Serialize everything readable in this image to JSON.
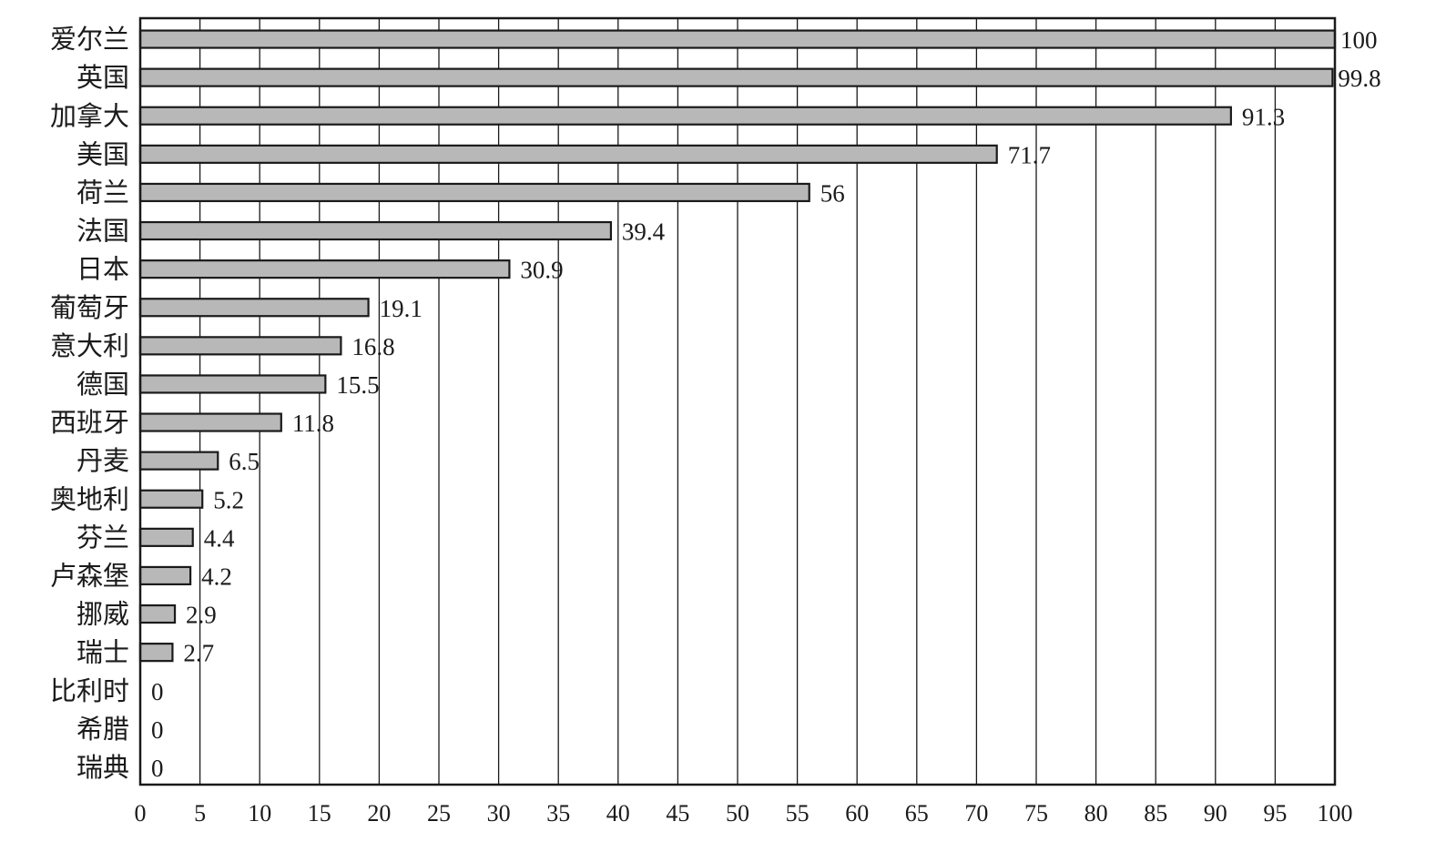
{
  "chart_data": {
    "type": "bar",
    "orientation": "horizontal",
    "title": "",
    "xlabel": "",
    "ylabel": "",
    "xlim": [
      0,
      100
    ],
    "x_ticks": [
      0,
      5,
      10,
      15,
      20,
      25,
      30,
      35,
      40,
      45,
      50,
      55,
      60,
      65,
      70,
      75,
      80,
      85,
      90,
      95,
      100
    ],
    "grid": "vertical",
    "legend": "none",
    "categories": [
      "爱尔兰",
      "英国",
      "加拿大",
      "美国",
      "荷兰",
      "法国",
      "日本",
      "葡萄牙",
      "意大利",
      "德国",
      "西班牙",
      "丹麦",
      "奥地利",
      "芬兰",
      "卢森堡",
      "挪威",
      "瑞士",
      "比利时",
      "希腊",
      "瑞典"
    ],
    "values": [
      100,
      99.8,
      91.3,
      71.7,
      56,
      39.4,
      30.9,
      19.1,
      16.8,
      15.5,
      11.8,
      6.5,
      5.2,
      4.4,
      4.2,
      2.9,
      2.7,
      0,
      0,
      0
    ],
    "value_labels": [
      "100",
      "99.8",
      "91.3",
      "71.7",
      "56",
      "39.4",
      "30.9",
      "19.1",
      "16.8",
      "15.5",
      "11.8",
      "6.5",
      "5.2",
      "4.4",
      "4.2",
      "2.9",
      "2.7",
      "0",
      "0",
      "0"
    ],
    "colors": {
      "bar_fill": "#b8b8b8",
      "bar_stroke": "#1a1a1a",
      "grid": "#1a1a1a",
      "frame": "#1a1a1a",
      "text": "#1a1a1a"
    }
  }
}
